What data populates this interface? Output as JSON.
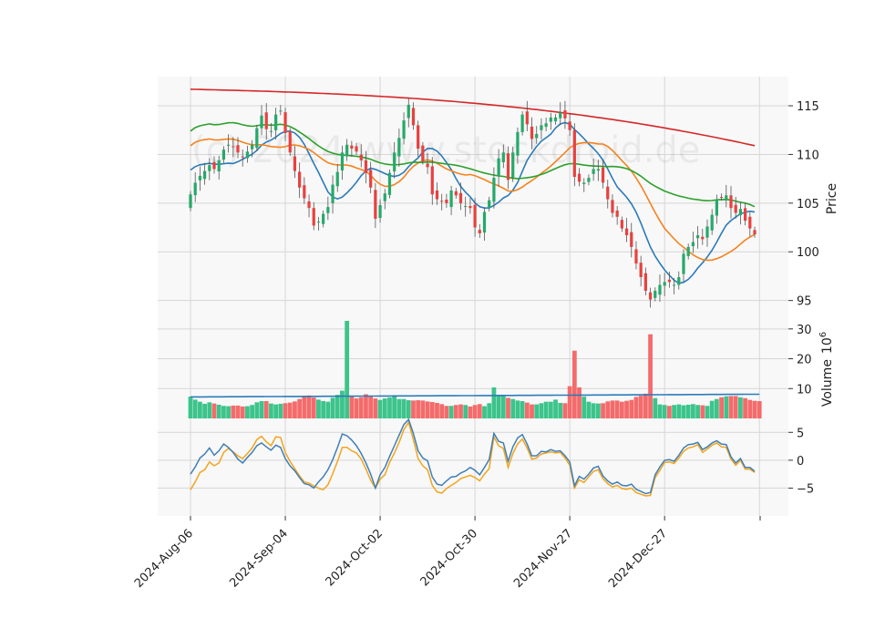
{
  "watermark": "(c) 2024 www.stockdroid.de",
  "colors": {
    "panel_bg": "#f8f8f8",
    "grid": "#d6d6d6",
    "up": "#26a96a",
    "down": "#e8413f",
    "up_bar": "#3cc48b",
    "down_bar": "#f46b6b",
    "ma_fast": "#2b7bba",
    "ma_mid": "#f5821f",
    "ma_slow": "#2ca02c",
    "ma_long": "#d62728",
    "vol_ma": "#2b7bba",
    "osc_a": "#3f7fb6",
    "osc_b": "#f2a51c"
  },
  "chart_data": {
    "type": "candlestick",
    "x_tick_labels": [
      "2024-Aug-06",
      "2024-Sep-04",
      "2024-Oct-02",
      "2024-Oct-30",
      "2024-Nov-27",
      "2024-Dec-27"
    ],
    "price_axis": {
      "label": "Price",
      "ticks": [
        95,
        100,
        105,
        110,
        115
      ],
      "range": [
        93,
        118
      ]
    },
    "volume_axis": {
      "label": "Volume",
      "multiplier": "10",
      "exponent": "6",
      "ticks": [
        10,
        20,
        30
      ],
      "range": [
        0,
        33
      ]
    },
    "oscillator_axis": {
      "ticks": [
        5,
        0,
        -5
      ],
      "range": [
        -10,
        7.5
      ]
    },
    "close": [
      105.9,
      107.1,
      107.8,
      108.3,
      108.9,
      108.5,
      109.4,
      110.5,
      111.0,
      110.8,
      110.2,
      109.7,
      110.3,
      111.0,
      112.7,
      114.0,
      112.6,
      112.4,
      114.1,
      114.5,
      112.2,
      110.2,
      108.3,
      106.6,
      105.5,
      104.5,
      102.7,
      103.1,
      103.9,
      104.6,
      106.9,
      108.2,
      110.2,
      111.0,
      110.6,
      110.3,
      109.4,
      108.1,
      106.6,
      103.4,
      104.8,
      106.0,
      108.1,
      110.2,
      111.7,
      113.5,
      115.1,
      113.0,
      110.6,
      109.3,
      108.7,
      105.9,
      105.4,
      105.2,
      105.0,
      106.3,
      105.8,
      105.0,
      104.7,
      104.5,
      102.5,
      101.9,
      104.1,
      105.3,
      107.6,
      109.6,
      110.2,
      107.4,
      110.2,
      112.3,
      114.1,
      113.1,
      111.6,
      112.1,
      113.0,
      113.2,
      113.8,
      113.8,
      114.3,
      113.7,
      112.5,
      107.7,
      107.2,
      107.1,
      107.6,
      108.5,
      108.5,
      107.1,
      105.4,
      104.0,
      103.6,
      102.4,
      101.7,
      100.5,
      98.8,
      97.4,
      96.0,
      95.1,
      96.0,
      96.6,
      96.9,
      96.9,
      96.6,
      97.4,
      99.8,
      100.5,
      101.0,
      101.7,
      101.3,
      102.6,
      103.8,
      105.4,
      105.6,
      105.8,
      104.5,
      104.0,
      104.4,
      103.2,
      102.4,
      101.8
    ],
    "volume_millions": [
      7.3,
      6.3,
      5.6,
      4.9,
      5.4,
      5.0,
      4.6,
      4.2,
      4.1,
      4.3,
      4.3,
      4.0,
      4.1,
      4.5,
      5.4,
      5.8,
      5.8,
      5.0,
      4.7,
      4.9,
      5.1,
      5.3,
      5.7,
      6.5,
      7.2,
      7.7,
      7.0,
      6.3,
      5.8,
      5.6,
      6.9,
      7.9,
      9.3,
      32.7,
      7.4,
      6.7,
      7.1,
      8.1,
      7.4,
      6.7,
      6.2,
      6.7,
      7.0,
      7.8,
      6.5,
      6.5,
      6.1,
      6.0,
      6.1,
      6.0,
      5.7,
      5.5,
      5.2,
      4.8,
      4.2,
      4.2,
      4.5,
      4.7,
      4.5,
      4.0,
      4.5,
      4.8,
      4.1,
      5.1,
      10.4,
      7.8,
      7.5,
      6.9,
      6.5,
      6.0,
      5.8,
      5.3,
      4.7,
      4.7,
      5.1,
      5.6,
      5.6,
      6.3,
      5.2,
      5.1,
      10.8,
      22.7,
      10.4,
      7.3,
      5.6,
      5.1,
      5.0,
      5.1,
      5.7,
      6.0,
      6.0,
      5.6,
      5.9,
      6.2,
      7.2,
      7.6,
      8.3,
      28.2,
      6.8,
      4.7,
      4.5,
      4.2,
      4.5,
      4.7,
      4.4,
      4.6,
      4.8,
      4.5,
      4.4,
      4.2,
      5.9,
      6.5,
      7.1,
      7.4,
      7.5,
      7.5,
      7.1,
      6.8,
      6.2,
      5.9,
      5.8
    ],
    "series_a": [
      -2.5,
      -1.2,
      0.4,
      1.1,
      2.2,
      0.9,
      1.7,
      2.9,
      2.3,
      1.4,
      0.2,
      -0.5,
      0.5,
      1.4,
      2.6,
      3.1,
      2.4,
      1.8,
      2.7,
      2.3,
      0.3,
      -1.0,
      -1.9,
      -3.1,
      -4.2,
      -4.4,
      -5.0,
      -3.9,
      -3.0,
      -1.7,
      0.1,
      2.3,
      4.7,
      4.4,
      3.6,
      2.6,
      1.2,
      -0.5,
      -2.5,
      -5.0,
      -2.6,
      -1.3,
      0.7,
      2.6,
      4.5,
      6.4,
      7.3,
      4.8,
      1.7,
      0.4,
      -0.1,
      -3.0,
      -4.3,
      -4.5,
      -3.7,
      -3.0,
      -2.9,
      -2.3,
      -1.9,
      -1.3,
      -1.8,
      -2.6,
      -1.3,
      0.1,
      4.8,
      3.4,
      3.1,
      -0.2,
      2.4,
      4.0,
      4.6,
      2.9,
      0.8,
      0.8,
      1.6,
      1.5,
      1.9,
      1.6,
      1.7,
      0.8,
      -0.3,
      -4.6,
      -2.9,
      -3.4,
      -2.5,
      -1.4,
      -1.1,
      -2.8,
      -3.7,
      -4.3,
      -3.9,
      -4.5,
      -4.6,
      -4.3,
      -5.2,
      -5.6,
      -6.0,
      -5.8,
      -2.6,
      -1.2,
      0.0,
      0.1,
      -0.2,
      0.9,
      2.2,
      2.8,
      2.9,
      3.2,
      1.9,
      2.4,
      3.1,
      3.5,
      2.9,
      2.8,
      0.6,
      -0.5,
      0.3,
      -1.3,
      -1.3,
      -2.0
    ],
    "series_b": [
      -5.3,
      -3.9,
      -2.2,
      -1.7,
      -0.3,
      -1.0,
      -0.5,
      1.4,
      2.1,
      1.5,
      0.8,
      0.3,
      1.2,
      2.2,
      3.7,
      4.3,
      3.3,
      2.6,
      4.2,
      4.1,
      1.4,
      -0.2,
      -1.5,
      -2.8,
      -3.9,
      -4.1,
      -4.6,
      -5.0,
      -5.3,
      -4.4,
      -2.4,
      -0.2,
      2.3,
      2.3,
      1.7,
      1.3,
      0.2,
      -1.6,
      -3.6,
      -5.0,
      -3.4,
      -2.6,
      -0.4,
      1.3,
      3.2,
      5.5,
      6.8,
      3.7,
      0.3,
      -1.0,
      -1.7,
      -4.5,
      -5.7,
      -5.9,
      -5.1,
      -4.5,
      -4.0,
      -3.3,
      -3.0,
      -2.7,
      -3.1,
      -3.7,
      -2.5,
      -1.5,
      4.2,
      2.6,
      2.1,
      -1.3,
      1.2,
      2.9,
      3.8,
      2.2,
      0.2,
      0.4,
      1.1,
      1.3,
      1.5,
      1.3,
      1.4,
      0.4,
      -0.9,
      -5.0,
      -3.5,
      -4.0,
      -3.0,
      -2.0,
      -1.7,
      -3.3,
      -4.2,
      -4.8,
      -4.5,
      -5.1,
      -5.2,
      -5.0,
      -5.8,
      -6.1,
      -6.4,
      -6.3,
      -3.1,
      -1.8,
      -0.4,
      -0.3,
      -0.6,
      0.4,
      1.6,
      2.2,
      2.4,
      2.8,
      1.4,
      2.0,
      2.7,
      3.1,
      2.4,
      2.3,
      0.2,
      -0.9,
      0.0,
      -1.6,
      -1.6,
      -2.2
    ]
  }
}
